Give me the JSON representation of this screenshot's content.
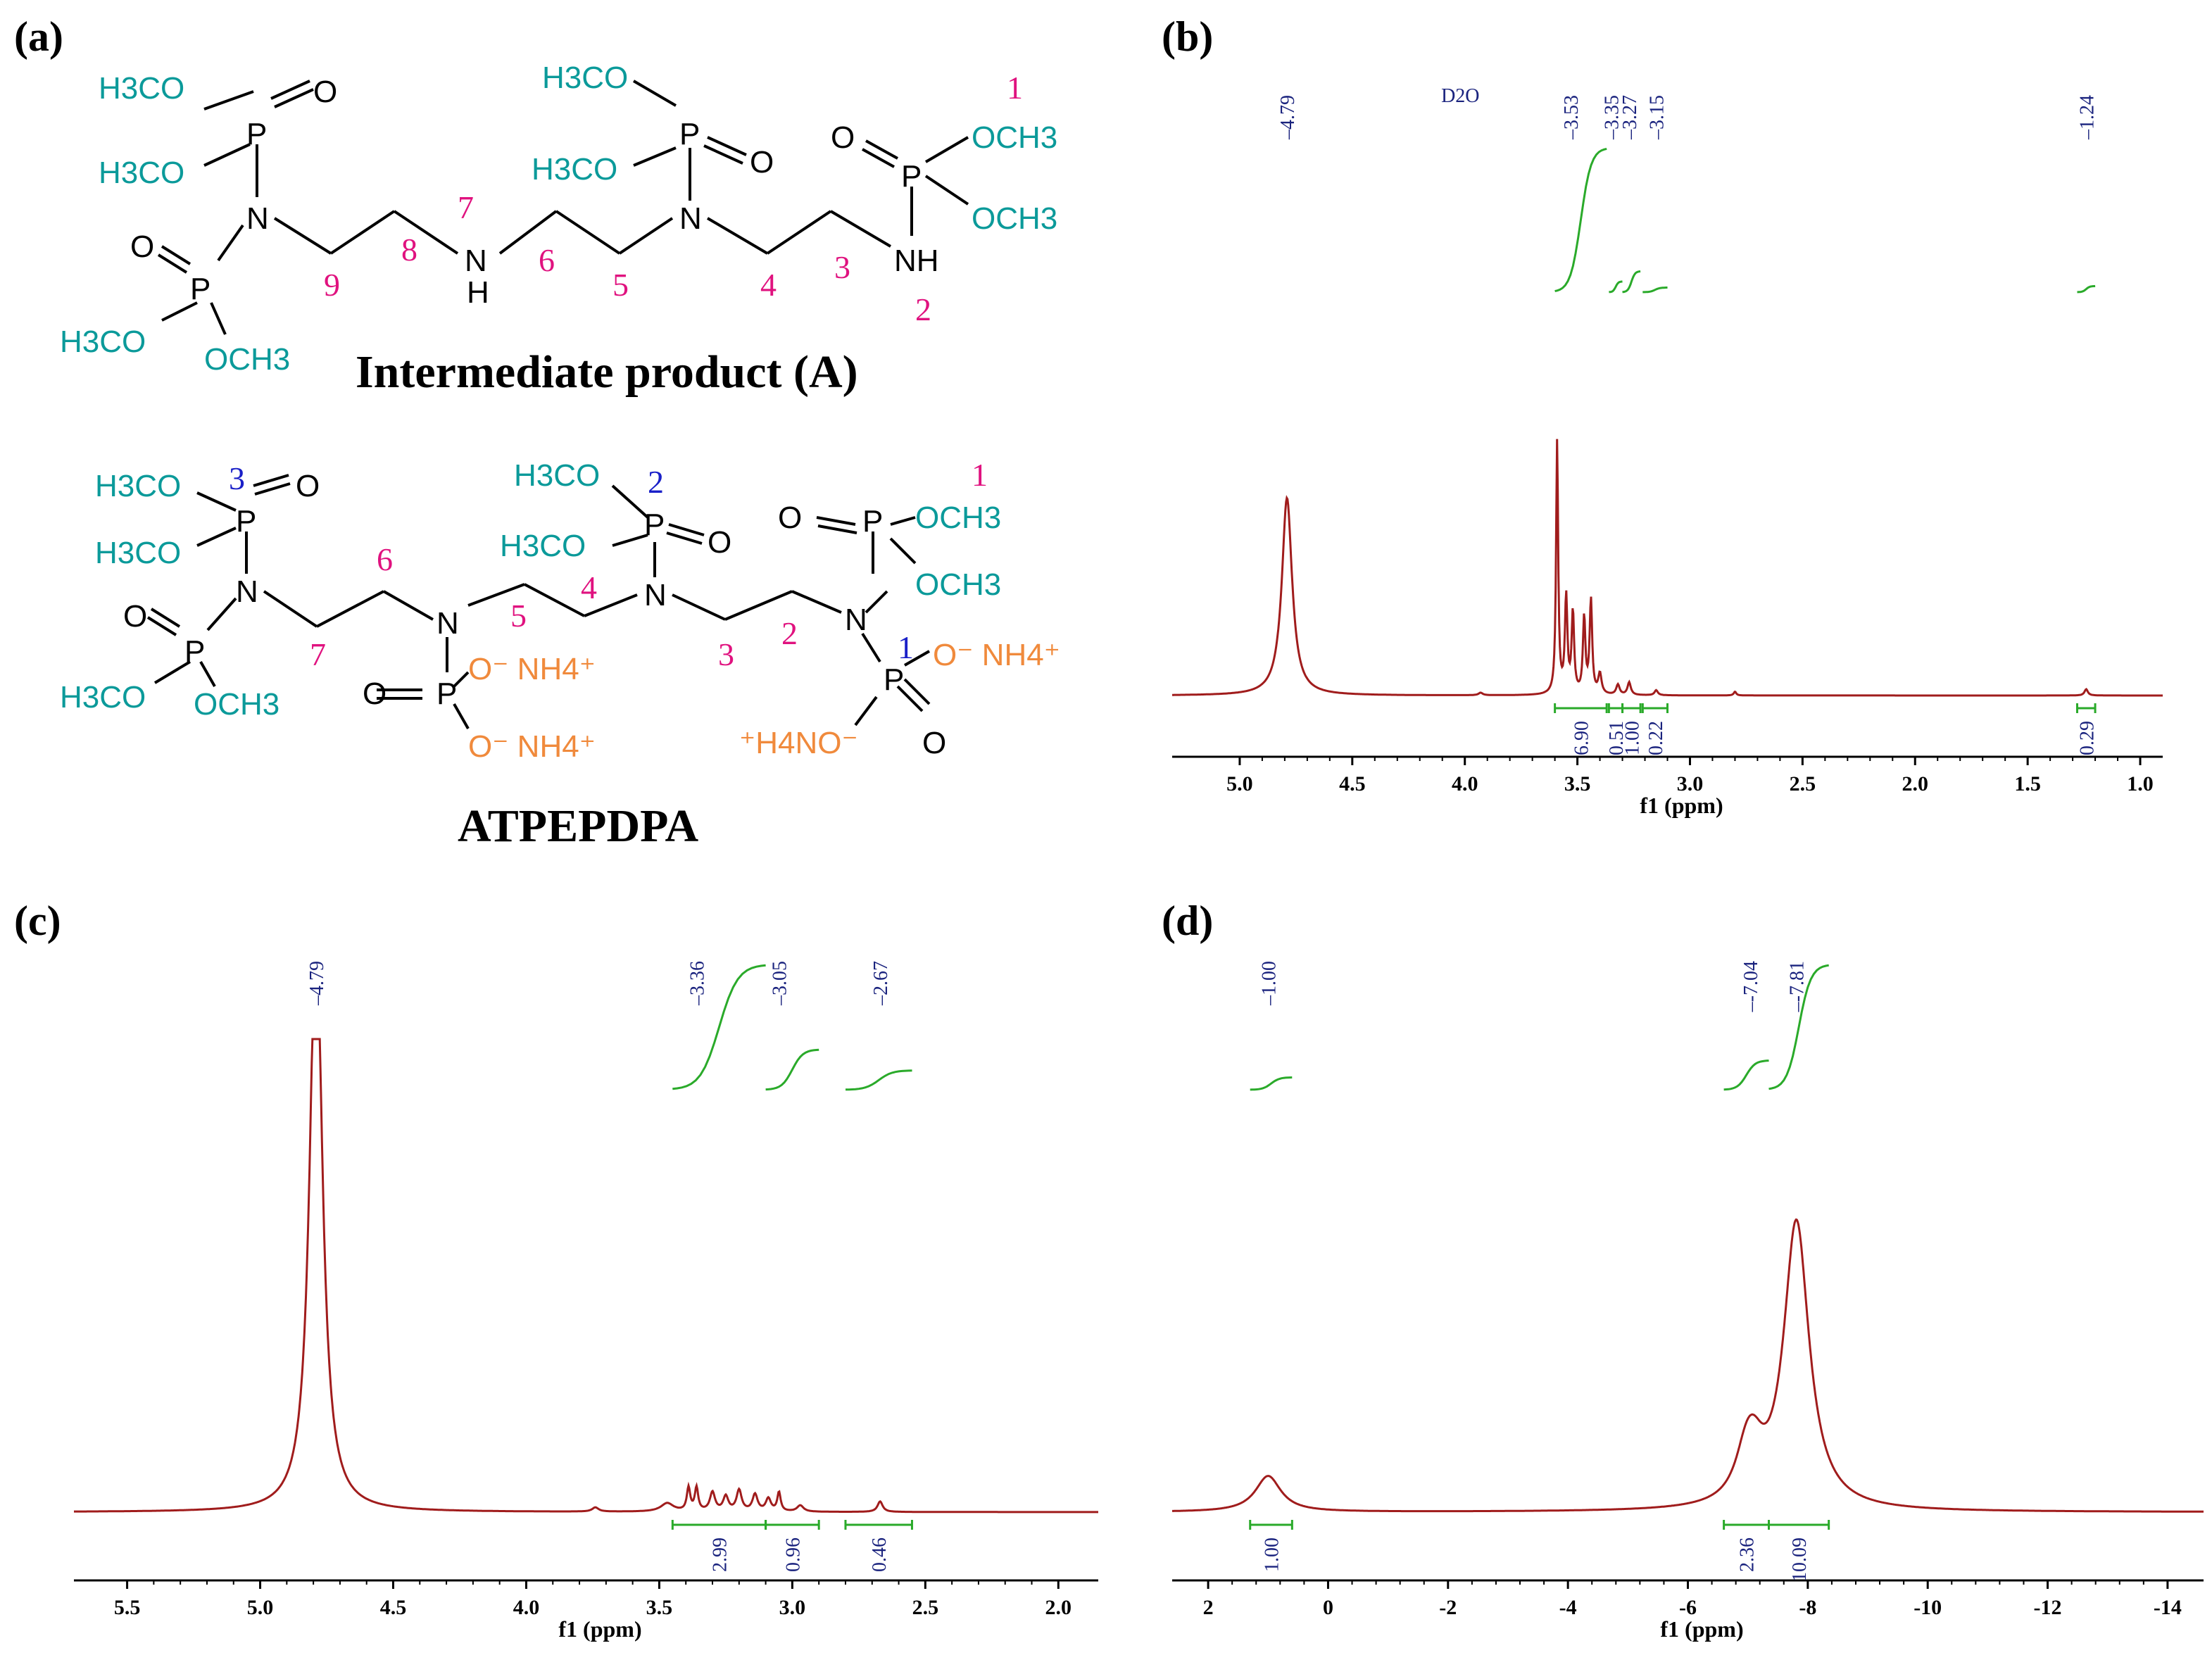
{
  "panels": {
    "a": "(a)",
    "b": "(b)",
    "c": "(c)",
    "d": "(d)"
  },
  "structures": {
    "intermediate_name": "Intermediate product (A)",
    "final_name": "ATPEPDPA",
    "atoms": {
      "ome": "H3CO",
      "och3": "OCH3",
      "P": "P",
      "O": "O",
      "N": "N",
      "NH": "NH",
      "H": "H",
      "onh4": "O⁻ NH4⁺",
      "h4no": "⁺H4NO⁻"
    },
    "intermediate_numbers": [
      "1",
      "2",
      "3",
      "4",
      "5",
      "6",
      "7",
      "8",
      "9"
    ],
    "final_numbers_pink": [
      "1",
      "2",
      "3",
      "4",
      "5",
      "6",
      "7"
    ],
    "final_numbers_blue": [
      "1",
      "2",
      "3"
    ]
  },
  "colors": {
    "spectrum": "#a01c1c",
    "integral": "#2aaa2a",
    "peak_label": "#1a237e",
    "methoxy": "#0b9a9a",
    "numbering": "#e0127f",
    "ammonium": "#f08a3c",
    "blue_numbers": "#1a20c8"
  },
  "chart_data": [
    {
      "panel": "b",
      "type": "line",
      "xlabel": "f1 (ppm)",
      "xlim": [
        5.3,
        0.9
      ],
      "x_ticks": [
        "5.0",
        "4.5",
        "4.0",
        "3.5",
        "3.0",
        "2.5",
        "2.0",
        "1.5",
        "1.0"
      ],
      "annotations": [
        "D2O"
      ],
      "peak_labels": [
        "4.79",
        "3.53",
        "3.35",
        "3.27",
        "3.15",
        "1.24"
      ],
      "peaks": [
        {
          "ppm": 4.79,
          "height": 0.78,
          "width": 0.025
        },
        {
          "ppm": 3.59,
          "height": 1.0,
          "width": 0.005
        },
        {
          "ppm": 3.55,
          "height": 0.38,
          "width": 0.006
        },
        {
          "ppm": 3.52,
          "height": 0.32,
          "width": 0.006
        },
        {
          "ppm": 3.47,
          "height": 0.3,
          "width": 0.006
        },
        {
          "ppm": 3.44,
          "height": 0.37,
          "width": 0.006
        },
        {
          "ppm": 3.4,
          "height": 0.08,
          "width": 0.008
        },
        {
          "ppm": 3.32,
          "height": 0.04,
          "width": 0.008
        },
        {
          "ppm": 3.27,
          "height": 0.05,
          "width": 0.008
        },
        {
          "ppm": 3.15,
          "height": 0.02,
          "width": 0.008
        },
        {
          "ppm": 3.93,
          "height": 0.01,
          "width": 0.01
        },
        {
          "ppm": 2.8,
          "height": 0.015,
          "width": 0.006
        },
        {
          "ppm": 1.24,
          "height": 0.025,
          "width": 0.008
        }
      ],
      "integrals": [
        {
          "label": "6.90",
          "from": 3.6,
          "to": 3.37,
          "value": 6.9
        },
        {
          "label": "0.51",
          "from": 3.36,
          "to": 3.3,
          "value": 0.51
        },
        {
          "label": "1.00",
          "from": 3.3,
          "to": 3.22,
          "value": 1.0
        },
        {
          "label": "0.22",
          "from": 3.21,
          "to": 3.1,
          "value": 0.22
        },
        {
          "label": "0.29",
          "from": 1.28,
          "to": 1.2,
          "value": 0.29
        }
      ]
    },
    {
      "panel": "c",
      "type": "line",
      "xlabel": "f1 (ppm)",
      "xlim": [
        5.7,
        1.85
      ],
      "x_ticks": [
        "5.5",
        "5.0",
        "4.5",
        "4.0",
        "3.5",
        "3.0",
        "2.5",
        "2.0"
      ],
      "peak_labels": [
        "4.79",
        "3.36",
        "3.05",
        "2.67"
      ],
      "peaks": [
        {
          "ppm": 4.79,
          "height": 1.4,
          "width": 0.03
        },
        {
          "ppm": 3.74,
          "height": 0.01,
          "width": 0.015
        },
        {
          "ppm": 3.47,
          "height": 0.02,
          "width": 0.03
        },
        {
          "ppm": 3.39,
          "height": 0.055,
          "width": 0.008
        },
        {
          "ppm": 3.36,
          "height": 0.055,
          "width": 0.008
        },
        {
          "ppm": 3.3,
          "height": 0.045,
          "width": 0.012
        },
        {
          "ppm": 3.25,
          "height": 0.035,
          "width": 0.012
        },
        {
          "ppm": 3.2,
          "height": 0.05,
          "width": 0.012
        },
        {
          "ppm": 3.14,
          "height": 0.04,
          "width": 0.012
        },
        {
          "ppm": 3.09,
          "height": 0.03,
          "width": 0.012
        },
        {
          "ppm": 3.05,
          "height": 0.045,
          "width": 0.008
        },
        {
          "ppm": 2.97,
          "height": 0.015,
          "width": 0.015
        },
        {
          "ppm": 2.67,
          "height": 0.025,
          "width": 0.012
        }
      ],
      "integrals": [
        {
          "label": "2.99",
          "from": 3.45,
          "to": 3.1,
          "value": 2.99
        },
        {
          "label": "0.96",
          "from": 3.1,
          "to": 2.9,
          "value": 0.96
        },
        {
          "label": "0.46",
          "from": 2.8,
          "to": 2.55,
          "value": 0.46
        }
      ]
    },
    {
      "panel": "d",
      "type": "line",
      "xlabel": "f1 (ppm)",
      "xlim": [
        2.6,
        -14.6
      ],
      "x_ticks": [
        "2",
        "0",
        "-2",
        "-4",
        "-6",
        "-8",
        "-10",
        "-12",
        "-14"
      ],
      "peak_labels": [
        "1.00",
        "-7.04",
        "-7.81"
      ],
      "peaks": [
        {
          "ppm": 1.0,
          "height": 0.085,
          "width": 0.06
        },
        {
          "ppm": -6.97,
          "height": 0.09,
          "width": 0.05
        },
        {
          "ppm": -7.1,
          "height": 0.085,
          "width": 0.05
        },
        {
          "ppm": -7.81,
          "height": 0.68,
          "width": 0.06
        }
      ],
      "integrals": [
        {
          "label": "1.00",
          "from": 1.3,
          "to": 0.6,
          "value": 1.0
        },
        {
          "label": "2.36",
          "from": -6.6,
          "to": -7.35,
          "value": 2.36
        },
        {
          "label": "10.09",
          "from": -7.35,
          "to": -8.35,
          "value": 10.09
        }
      ]
    }
  ]
}
